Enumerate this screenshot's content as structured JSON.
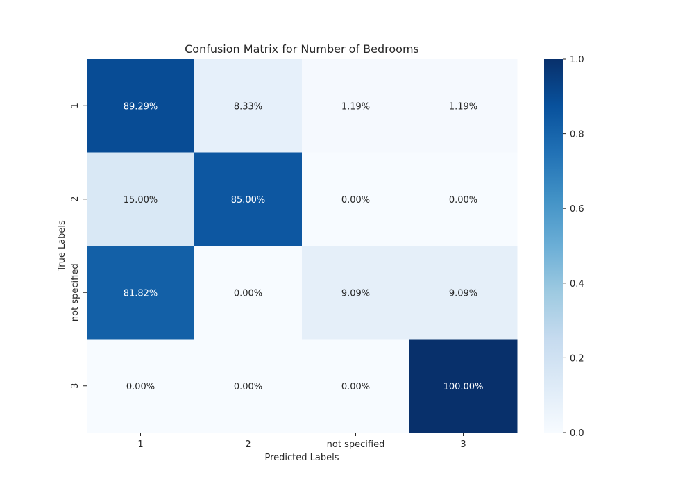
{
  "chart_data": {
    "type": "heatmap",
    "title": "Confusion Matrix for Number of Bedrooms",
    "xlabel": "Predicted Labels",
    "ylabel": "True Labels",
    "x_categories": [
      "1",
      "2",
      "not specified",
      "3"
    ],
    "y_categories": [
      "1",
      "2",
      "not specified",
      "3"
    ],
    "values": [
      [
        0.8929,
        0.0833,
        0.0119,
        0.0119
      ],
      [
        0.15,
        0.85,
        0.0,
        0.0
      ],
      [
        0.8182,
        0.0,
        0.0909,
        0.0909
      ],
      [
        0.0,
        0.0,
        0.0,
        1.0
      ]
    ],
    "cell_labels": [
      [
        "89.29%",
        "8.33%",
        "1.19%",
        "1.19%"
      ],
      [
        "15.00%",
        "85.00%",
        "0.00%",
        "0.00%"
      ],
      [
        "81.82%",
        "0.00%",
        "9.09%",
        "9.09%"
      ],
      [
        "0.00%",
        "0.00%",
        "0.00%",
        "100.00%"
      ]
    ],
    "colorbar": {
      "range": [
        0.0,
        1.0
      ],
      "ticks": [
        "0.0",
        "0.2",
        "0.4",
        "0.6",
        "0.8",
        "1.0"
      ],
      "colormap": "Blues"
    }
  }
}
